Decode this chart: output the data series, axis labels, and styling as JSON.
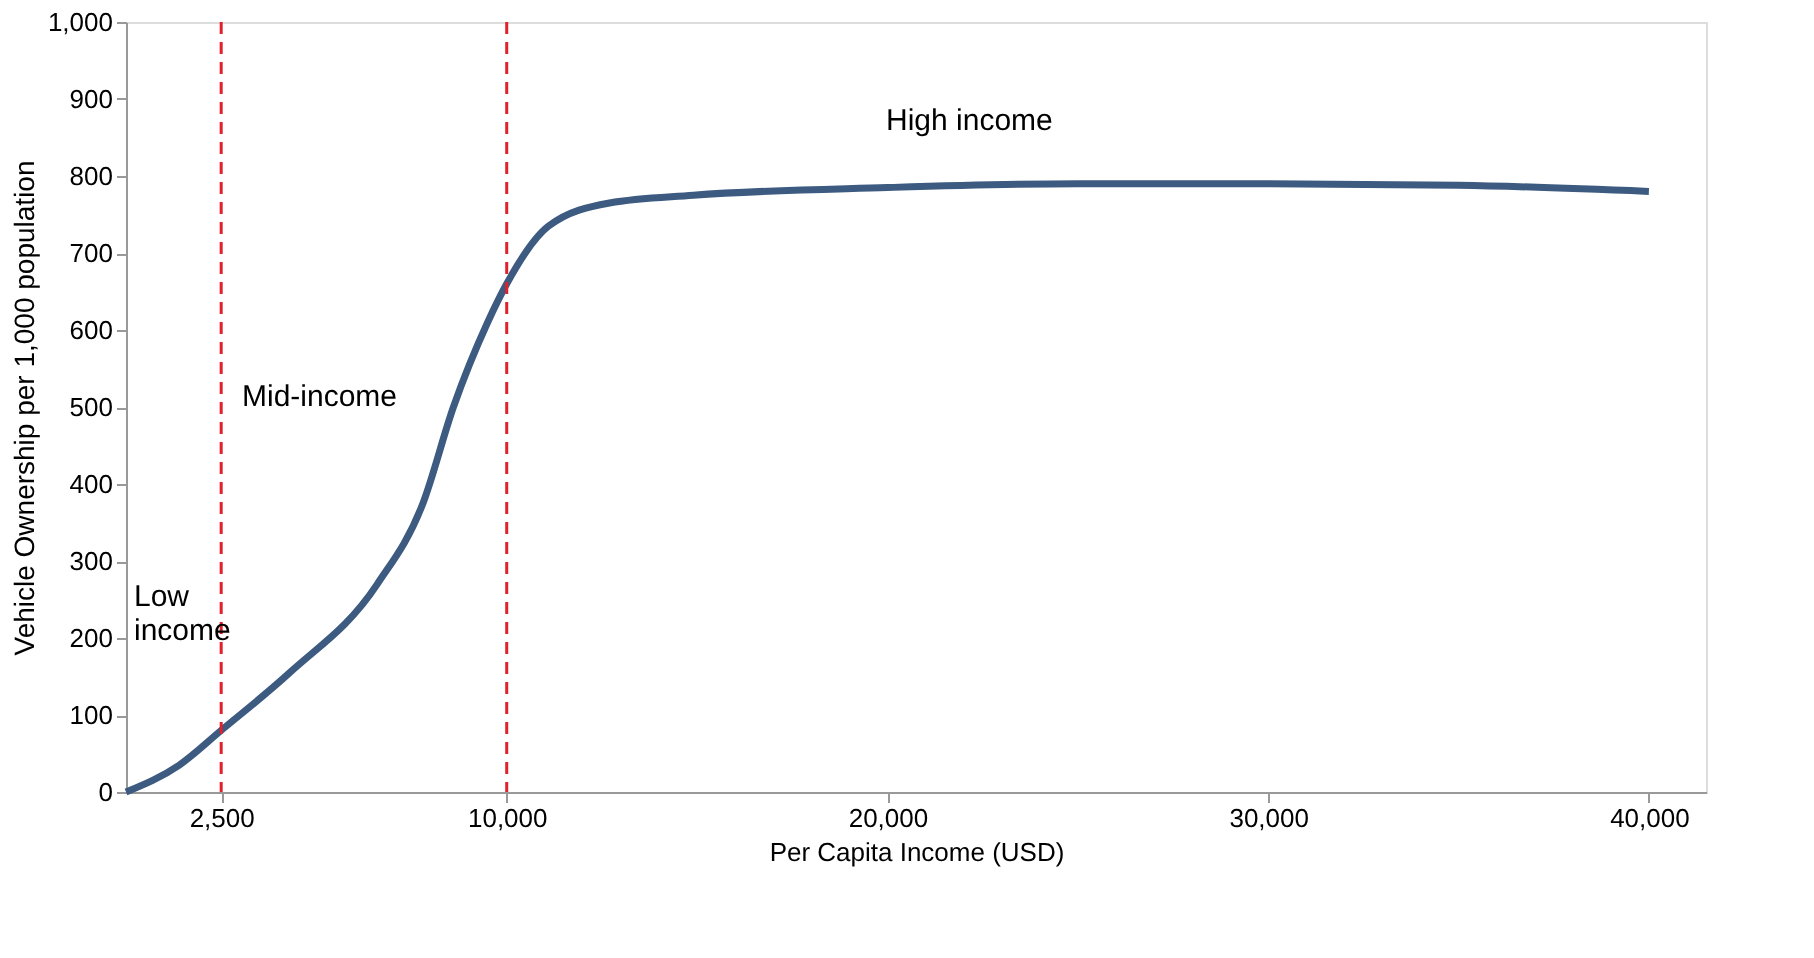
{
  "chart_data": {
    "type": "line",
    "xlabel": "Per Capita Income (USD)",
    "ylabel": "Vehicle Ownership per 1,000 population",
    "x": [
      0,
      1400,
      2500,
      4300,
      6600,
      7800,
      8600,
      9500,
      10000,
      11100,
      12700,
      14900,
      20000,
      25000,
      30000,
      35000,
      40000
    ],
    "series": [
      {
        "color": "#3d5a80",
        "values": [
          0,
          35,
          80,
          155,
          270,
          375,
          500,
          610,
          660,
          735,
          765,
          775,
          785,
          790,
          790,
          788,
          780
        ]
      }
    ],
    "xlim": [
      0,
      41500
    ],
    "xticks": [
      {
        "value": 2500,
        "label": "2,500"
      },
      {
        "value": 10000,
        "label": "10,000"
      },
      {
        "value": 20000,
        "label": "20,000"
      },
      {
        "value": 30000,
        "label": "30,000"
      },
      {
        "value": 40000,
        "label": "40,000"
      }
    ],
    "ylim": [
      0,
      1000
    ],
    "yticks": [
      0,
      100,
      200,
      300,
      400,
      500,
      600,
      700,
      800,
      900,
      {
        "value": 1000,
        "label": "1,000"
      }
    ],
    "ref_lines": [
      {
        "axis": "x",
        "value": 2500,
        "color": "#e0202a",
        "line_style": "dashed"
      },
      {
        "axis": "x",
        "value": 10000,
        "color": "#e0202a",
        "line_style": "dashed"
      }
    ],
    "annotations": [
      "Low\nincome",
      "Mid-income",
      "High income"
    ],
    "grid": false,
    "marker": "none",
    "line_style": "solid"
  }
}
